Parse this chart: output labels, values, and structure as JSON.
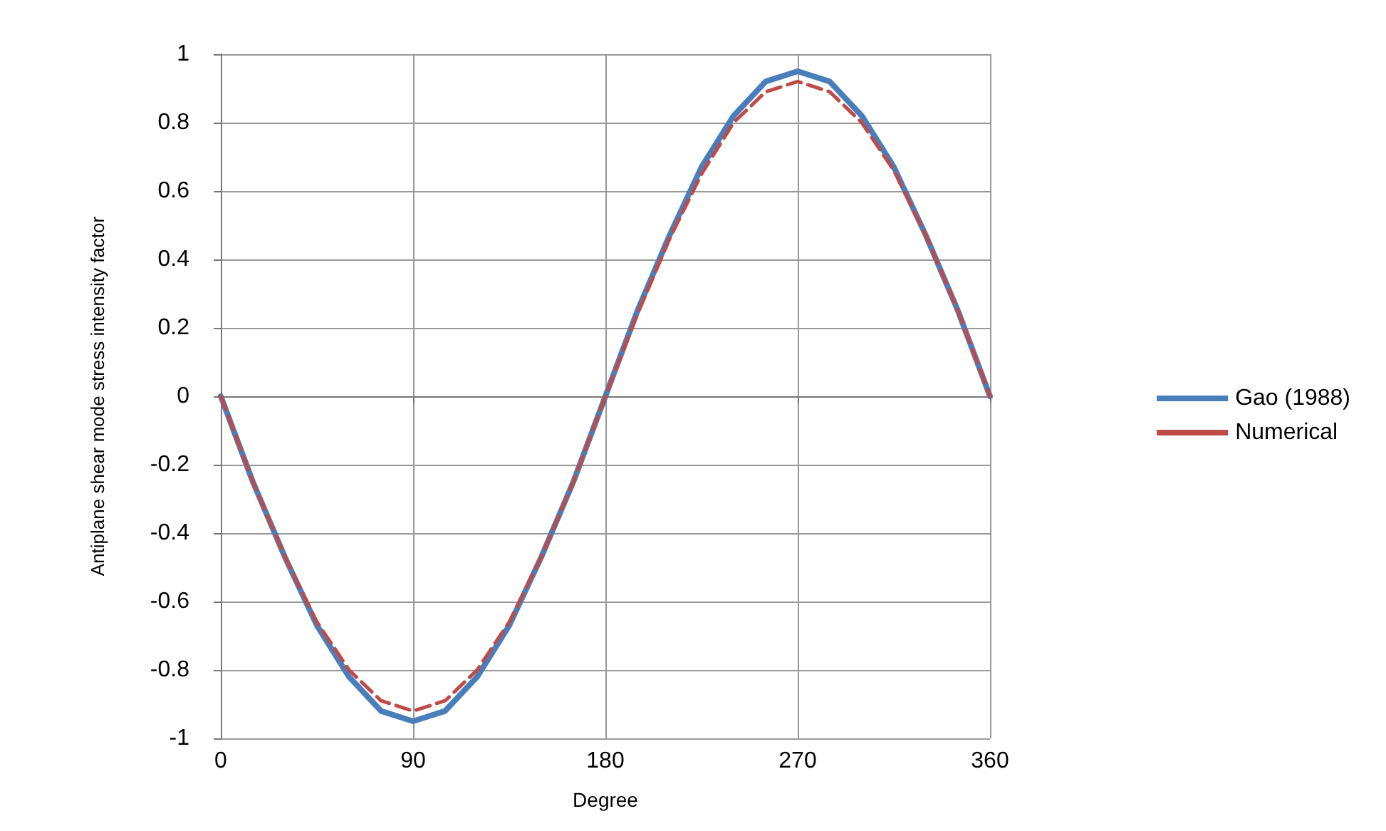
{
  "chart_data": {
    "type": "line",
    "xlabel": "Degree",
    "ylabel": "Antiplane shear mode stress intensity factor",
    "x": [
      0,
      15,
      30,
      45,
      60,
      75,
      90,
      105,
      120,
      135,
      150,
      165,
      180,
      195,
      210,
      225,
      240,
      255,
      270,
      285,
      300,
      315,
      330,
      345,
      360
    ],
    "series": [
      {
        "name": "Gao (1988)",
        "color": "#4a7ebb",
        "line_style": "solid",
        "values": [
          0,
          -0.25,
          -0.47,
          -0.67,
          -0.82,
          -0.92,
          -0.95,
          -0.92,
          -0.82,
          -0.67,
          -0.47,
          -0.25,
          0,
          0.25,
          0.47,
          0.67,
          0.82,
          0.92,
          0.95,
          0.92,
          0.82,
          0.67,
          0.47,
          0.25,
          0
        ]
      },
      {
        "name": "Numerical",
        "color": "#be4b48",
        "line_style": "dashed",
        "values": [
          0,
          -0.25,
          -0.47,
          -0.66,
          -0.8,
          -0.89,
          -0.92,
          -0.89,
          -0.8,
          -0.66,
          -0.47,
          -0.25,
          0,
          0.24,
          0.46,
          0.65,
          0.8,
          0.89,
          0.92,
          0.89,
          0.8,
          0.66,
          0.47,
          0.25,
          0
        ]
      }
    ],
    "xlim": [
      0,
      360
    ],
    "xticks": [
      0,
      90,
      180,
      270,
      360
    ],
    "ylim": [
      -1,
      1
    ],
    "yticks": [
      -1,
      -0.8,
      -0.6,
      -0.4,
      -0.2,
      0,
      0.2,
      0.4,
      0.6,
      0.8,
      1
    ],
    "grid": true,
    "legend": "right",
    "marker": "none"
  }
}
